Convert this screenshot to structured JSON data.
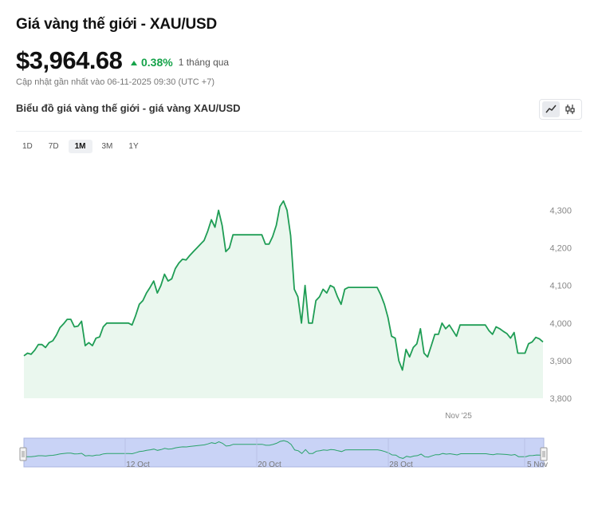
{
  "header": {
    "title": "Giá vàng thế giới - XAU/USD",
    "price": "$3,964.68",
    "change_pct": "0.38%",
    "change_period": "1 tháng qua",
    "updated": "Cập nhật gần nhất vào 06-11-2025 09:30 (UTC +7)",
    "subtitle": "Biểu đồ giá vàng thế giới - giá vàng XAU/USD"
  },
  "colors": {
    "up": "#16a34a",
    "line": "#1f9d55",
    "area": "#eaf7ee",
    "navigator": "#c9d3f6"
  },
  "chart_type_toggle": [
    {
      "name": "line-chart-icon",
      "active": true
    },
    {
      "name": "candlestick-chart-icon",
      "active": false
    }
  ],
  "ranges": [
    {
      "label": "1D",
      "active": false
    },
    {
      "label": "7D",
      "active": false
    },
    {
      "label": "1M",
      "active": true
    },
    {
      "label": "3M",
      "active": false
    },
    {
      "label": "1Y",
      "active": false
    }
  ],
  "chart_data": {
    "type": "area",
    "x_tick_labels": [
      "Nov '25"
    ],
    "ylim": [
      3800,
      4350
    ],
    "y_ticks": [
      3800,
      3900,
      4000,
      4100,
      4200,
      4300
    ],
    "y_tick_labels": [
      "3,800",
      "3,900",
      "4,000",
      "4,100",
      "4,200",
      "4,300"
    ],
    "navigator_labels": [
      "12 Oct",
      "20 Oct",
      "28 Oct",
      "5 Nov"
    ],
    "values": [
      3913,
      3920,
      3917,
      3928,
      3943,
      3943,
      3935,
      3948,
      3953,
      3968,
      3988,
      3998,
      4010,
      4010,
      3990,
      3992,
      4005,
      3940,
      3948,
      3940,
      3960,
      3963,
      3990,
      4000,
      4000,
      4000,
      4000,
      4000,
      4000,
      4000,
      3995,
      4020,
      4050,
      4060,
      4080,
      4095,
      4112,
      4080,
      4100,
      4130,
      4112,
      4118,
      4145,
      4160,
      4170,
      4168,
      4180,
      4190,
      4200,
      4210,
      4220,
      4245,
      4275,
      4255,
      4300,
      4260,
      4190,
      4200,
      4235,
      4235,
      4235,
      4235,
      4235,
      4235,
      4235,
      4235,
      4235,
      4210,
      4210,
      4230,
      4260,
      4310,
      4325,
      4300,
      4233,
      4090,
      4070,
      4000,
      4100,
      4000,
      4000,
      4060,
      4070,
      4090,
      4080,
      4100,
      4095,
      4070,
      4050,
      4090,
      4095,
      4095,
      4095,
      4095,
      4095,
      4095,
      4095,
      4095,
      4095,
      4075,
      4050,
      4015,
      3965,
      3960,
      3900,
      3875,
      3930,
      3910,
      3935,
      3945,
      3985,
      3920,
      3910,
      3940,
      3970,
      3970,
      4000,
      3985,
      3995,
      3980,
      3965,
      3995,
      3995,
      3995,
      3995,
      3995,
      3995,
      3995,
      3995,
      3980,
      3970,
      3990,
      3985,
      3978,
      3972,
      3960,
      3975,
      3920,
      3920,
      3920,
      3945,
      3950,
      3962,
      3958,
      3950
    ]
  }
}
